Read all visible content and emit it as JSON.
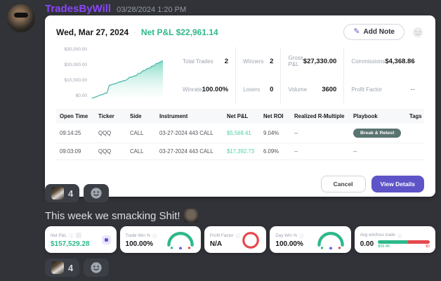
{
  "colors": {
    "accent-green": "#2eb88a",
    "green-light": "#4fcfa8",
    "purple": "#5e54c8",
    "username-purple": "#8b45f7",
    "pill-teal": "#5a7470",
    "red": "#e5484d",
    "blue-dot": "#6366f1",
    "chart-line": "#4db6ac"
  },
  "discord": {
    "username": "TradesByWill",
    "timestamp": "03/28/2024 1:20 PM",
    "message": "This week we smacking Shit!",
    "reaction": {
      "count": "4"
    }
  },
  "modal": {
    "date": "Wed, Mar 27, 2024",
    "separator": "·",
    "net_pnl": "Net P&L $22,961.14",
    "add_note_label": "Add Note",
    "stats": [
      {
        "label": "Total Trades",
        "value": "2"
      },
      {
        "label": "Winners",
        "value": "2"
      },
      {
        "label": "Gross P&L",
        "value": "$27,330.00"
      },
      {
        "label": "Commissions",
        "value": "$4,368.86"
      },
      {
        "label": "Winrate",
        "value": "100.00%"
      },
      {
        "label": "Losers",
        "value": "0"
      },
      {
        "label": "Volume",
        "value": "3600"
      },
      {
        "label": "Profit Factor",
        "value": "--"
      }
    ],
    "table": {
      "headers": [
        "Open Time",
        "Ticker",
        "Side",
        "Instrument",
        "Net P&L",
        "Net ROI",
        "Realized R-Multiple",
        "Playbook",
        "Tags"
      ],
      "rows": [
        {
          "open_time": "09:14:25",
          "ticker": "QQQ",
          "side": "CALL",
          "instrument": "03-27-2024 443 CALL",
          "net_pnl": "$5,568.41",
          "net_roi": "9.04%",
          "r_multiple": "--",
          "playbook": "Break & Retest",
          "tags": ""
        },
        {
          "open_time": "09:03:09",
          "ticker": "QQQ",
          "side": "CALL",
          "instrument": "03-27-2024 443 CALL",
          "net_pnl": "$17,392.73",
          "net_roi": "6.09%",
          "r_multiple": "--",
          "playbook": "--",
          "tags": ""
        }
      ]
    },
    "cancel_label": "Cancel",
    "view_details_label": "View Details"
  },
  "widgets": {
    "net_pnl": {
      "label": "Net P&L",
      "value": "$157,529.28"
    },
    "trade_win": {
      "label": "Trade Win %",
      "value": "100.00%"
    },
    "profit_factor": {
      "label": "Profit Factor",
      "value": "N/A"
    },
    "day_win": {
      "label": "Day Win %",
      "value": "100.00%"
    },
    "avg_win_loss": {
      "label": "Avg win/loss trade",
      "value": "0.00",
      "win_label": "$59.4K",
      "loss_label": "$0"
    }
  },
  "icons": {
    "pencil": "✎",
    "info": "ⓘ"
  },
  "chart_data": {
    "type": "area",
    "title": "Intraday cumulative Net P&L",
    "values": [
      0,
      300,
      900,
      1400,
      2100,
      2300,
      3100,
      3300,
      7800,
      8300,
      8800,
      9000,
      9800,
      10000,
      10600,
      10800,
      11500,
      12800,
      13000,
      13600,
      13800,
      15200,
      15400,
      16800,
      17000,
      18200,
      18400,
      19600,
      19800,
      21200,
      21500,
      22300,
      22961
    ],
    "yticks": [
      "$30,000.00",
      "$20,000.00",
      "$10,000.00",
      "$0.00"
    ],
    "ylim": [
      0,
      30000
    ],
    "xlabel": "",
    "ylabel": "",
    "grid": false,
    "legend": false
  }
}
